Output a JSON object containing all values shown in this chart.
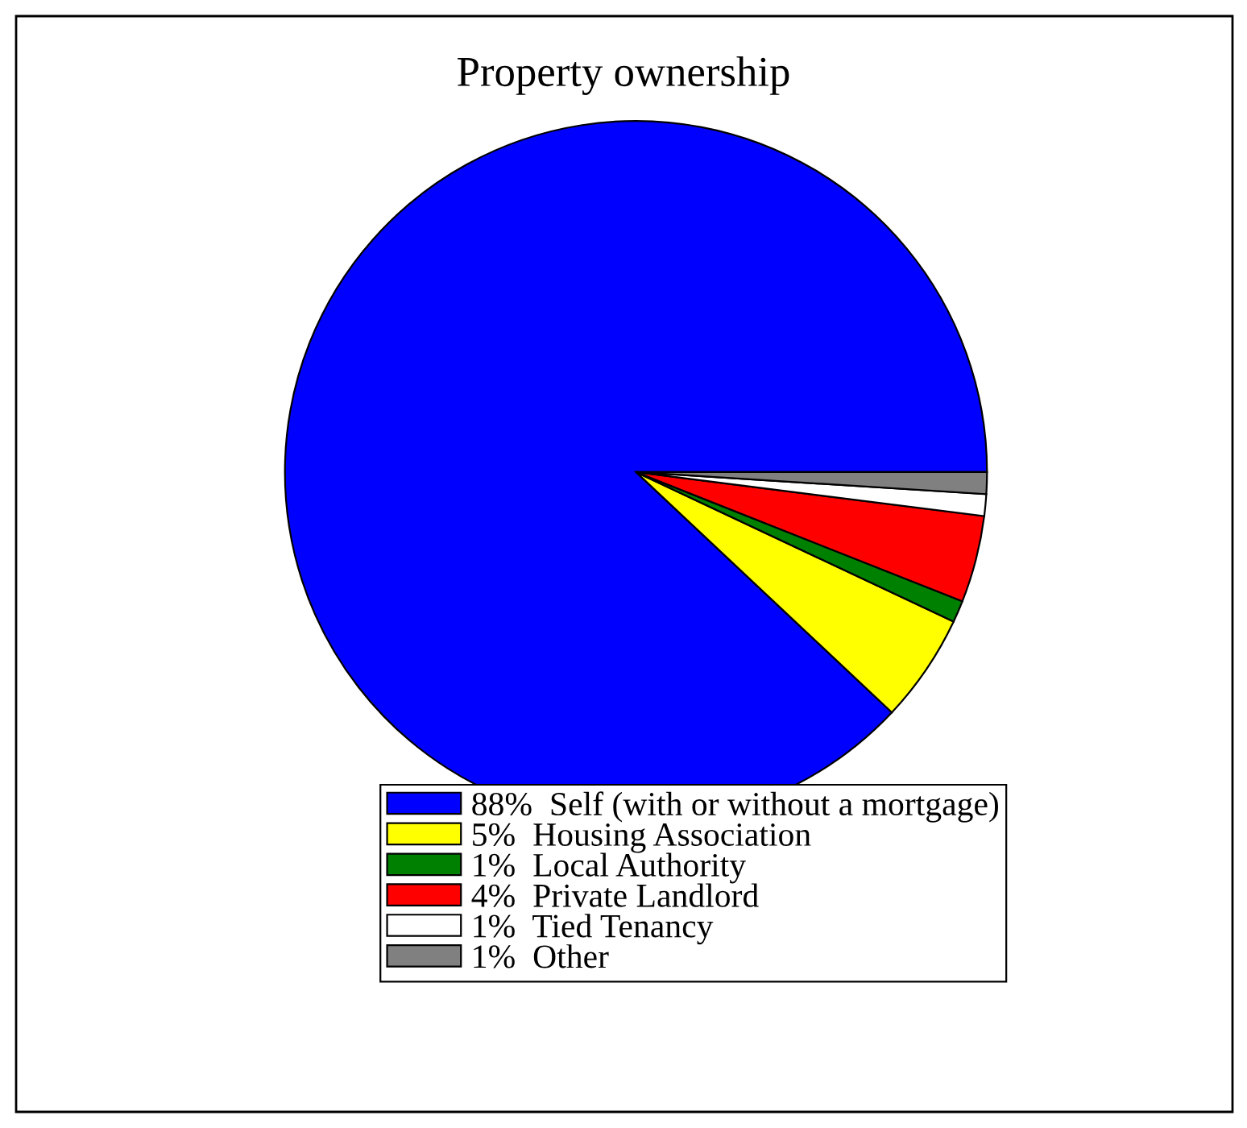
{
  "chart_data": {
    "type": "pie",
    "title": "Property ownership",
    "categories": [
      "Self (with or without a mortgage)",
      "Housing Association",
      "Local Authority",
      "Private Landlord",
      "Tied Tenancy",
      "Other"
    ],
    "values": [
      88,
      5,
      1,
      4,
      1,
      1
    ],
    "value_labels": [
      "88%",
      "5%",
      "1%",
      "4%",
      "1%",
      "1%"
    ],
    "colors": [
      "#0000ff",
      "#ffff00",
      "#008000",
      "#ff0000",
      "#ffffff",
      "#808080"
    ],
    "legend": "bottom"
  }
}
